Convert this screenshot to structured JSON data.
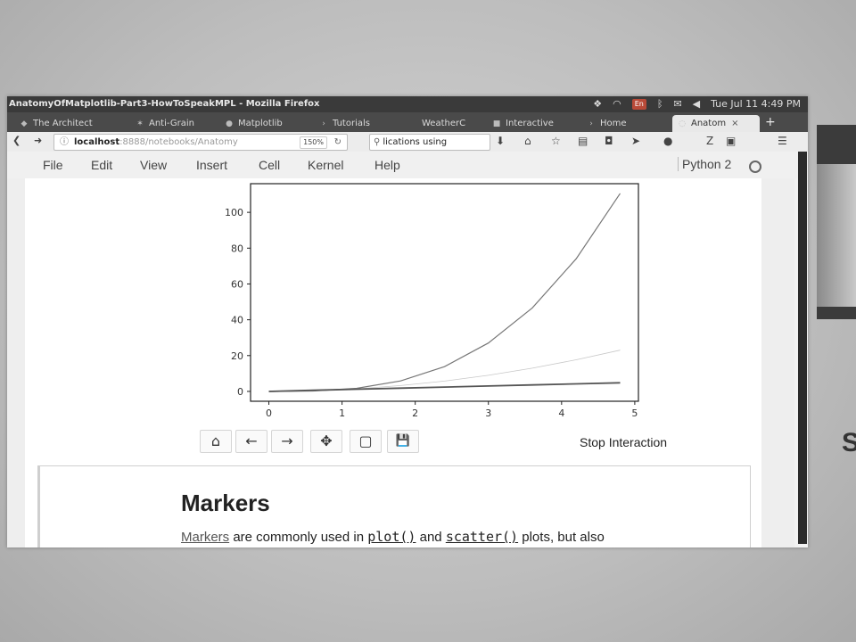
{
  "window": {
    "title": "AnatomyOfMatplotlib-Part3-HowToSpeakMPL - Mozilla Firefox",
    "lang_indicator": "En",
    "clock": "Tue Jul 11  4:49 PM"
  },
  "tabs": [
    {
      "label": "The Architect",
      "favicon": "page-icon"
    },
    {
      "label": "Anti-Grain",
      "favicon": "star-icon"
    },
    {
      "label": "Matplotlib",
      "favicon": "globe-icon"
    },
    {
      "label": "Tutorials",
      "favicon": "code-icon"
    },
    {
      "label": "WeatherC",
      "favicon": "page-icon"
    },
    {
      "label": "Interactive",
      "favicon": "jupyter-icon"
    },
    {
      "label": "Home",
      "favicon": "page-icon"
    },
    {
      "label": "Anatom",
      "favicon": "jupyter-icon",
      "active": true
    }
  ],
  "navbar": {
    "url_host": "localhost",
    "url_path": ":8888/notebooks/Anatomy",
    "zoom": "150%",
    "search_text": "lications using",
    "info_icon": "info-icon",
    "reload_icon": "reload-icon"
  },
  "menu": {
    "items": [
      "File",
      "Edit",
      "View",
      "Insert",
      "Cell",
      "Kernel",
      "Help"
    ],
    "kernel_name": "Python 2"
  },
  "figure": {
    "toolbar": [
      {
        "name": "home-icon",
        "glyph": "⌂"
      },
      {
        "name": "back-icon",
        "glyph": "←"
      },
      {
        "name": "forward-icon",
        "glyph": "→"
      },
      {
        "name": "pan-icon",
        "glyph": "✥"
      },
      {
        "name": "zoom-rect-icon",
        "glyph": "▢"
      },
      {
        "name": "save-icon",
        "glyph": "💾"
      }
    ],
    "stop_label": "Stop Interaction"
  },
  "chart_data": {
    "type": "line",
    "x_ticks": [
      "0",
      "1",
      "2",
      "3",
      "4",
      "5"
    ],
    "y_ticks": [
      "0",
      "20",
      "40",
      "60",
      "80",
      "100"
    ],
    "xlim": [
      -0.25,
      5.05
    ],
    "ylim": [
      -5.5,
      116
    ],
    "series": [
      {
        "color": "#777777",
        "stroke": 1.2,
        "x": [
          0,
          0.6,
          1.2,
          1.8,
          2.4,
          3.0,
          3.6,
          4.2,
          4.8
        ],
        "y": [
          0,
          0.22,
          1.73,
          5.83,
          13.82,
          27.0,
          46.66,
          74.09,
          110.59
        ]
      },
      {
        "color": "#c8c8c8",
        "stroke": 0.8,
        "x": [
          0,
          0.6,
          1.2,
          1.8,
          2.4,
          3.0,
          3.6,
          4.2,
          4.8
        ],
        "y": [
          0,
          0.36,
          1.44,
          3.24,
          5.76,
          9.0,
          12.96,
          17.64,
          23.04
        ]
      },
      {
        "color": "#555555",
        "stroke": 1.8,
        "x": [
          0,
          0.6,
          1.2,
          1.8,
          2.4,
          3.0,
          3.6,
          4.2,
          4.8
        ],
        "y": [
          0,
          0.6,
          1.2,
          1.8,
          2.4,
          3.0,
          3.6,
          4.2,
          4.8
        ]
      }
    ]
  },
  "markdown": {
    "heading": "Markers",
    "link_text": "Markers",
    "text_1": " are commonly used in ",
    "code_1": "plot()",
    "text_2": " and ",
    "code_2": "scatter()",
    "text_3": " plots, but also"
  },
  "side": {
    "glyph": "S"
  }
}
